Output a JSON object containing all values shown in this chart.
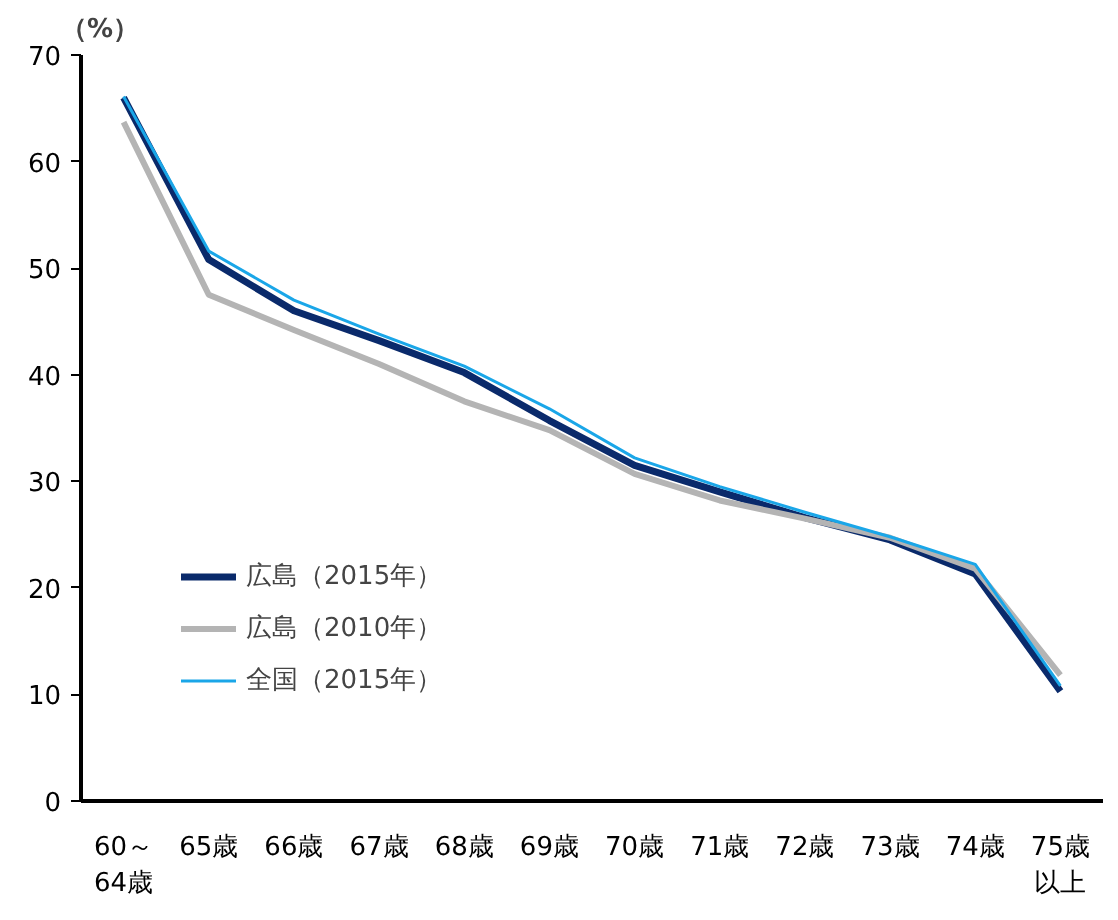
{
  "chart_data": {
    "type": "line",
    "ylabel": "（%）",
    "categories": [
      "60～64歳",
      "65歳",
      "66歳",
      "67歳",
      "68歳",
      "69歳",
      "70歳",
      "71歳",
      "72歳",
      "73歳",
      "74歳",
      "75歳以上"
    ],
    "series": [
      {
        "name": "広島（2015年）",
        "color": "#0a2a6b",
        "values": [
          66,
          50.8,
          46,
          43.2,
          40.2,
          35.7,
          31.5,
          29,
          26.6,
          24.5,
          21.3,
          10.3
        ]
      },
      {
        "name": "広島（2010年）",
        "color": "#b4b4b4",
        "values": [
          63.7,
          47.5,
          44.2,
          41,
          37.5,
          34.8,
          30.7,
          28.2,
          26.5,
          24.7,
          21.8,
          11.8
        ]
      },
      {
        "name": "全国（2015年）",
        "color": "#1aa6e8",
        "values": [
          66.1,
          51.6,
          47,
          43.8,
          40.8,
          36.8,
          32.2,
          29.5,
          27.1,
          24.8,
          22.2,
          10.8
        ]
      }
    ],
    "ylim": [
      0,
      70
    ],
    "yticks": [
      0,
      10,
      20,
      30,
      40,
      50,
      60,
      70
    ],
    "grid": false,
    "legend": "bottom left",
    "marker": "none",
    "line_style": "solid"
  }
}
